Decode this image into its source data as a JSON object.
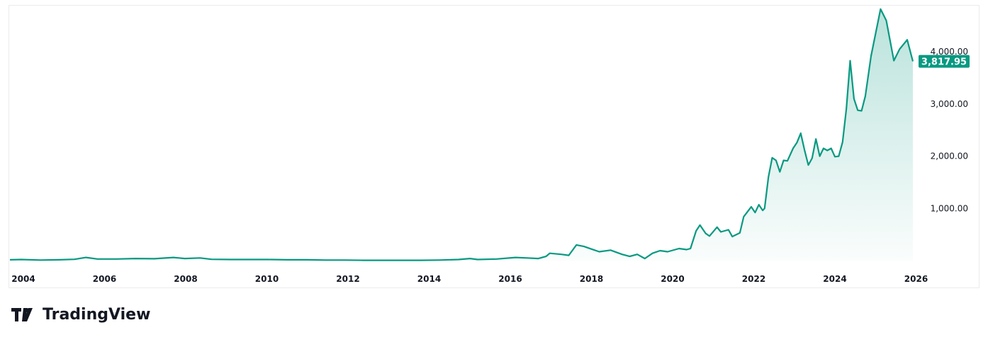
{
  "chart_data": {
    "type": "area",
    "xlabel": "",
    "ylabel": "",
    "xlim": [
      2003.67,
      2026.4
    ],
    "ylim": [
      0,
      4900
    ],
    "x_ticks": [
      "2004",
      "2006",
      "2008",
      "2010",
      "2012",
      "2014",
      "2016",
      "2018",
      "2020",
      "2022",
      "2024",
      "2026"
    ],
    "y_ticks": [
      1000,
      2000,
      3000,
      4000
    ],
    "y_tick_labels": [
      "1,000.00",
      "2,000.00",
      "3,000.00",
      "4,000.00"
    ],
    "last_price_label": "3,817.95",
    "line_color": "#089981",
    "grid": false,
    "points": [
      [
        2003.7,
        15
      ],
      [
        2004,
        20
      ],
      [
        2004.5,
        10
      ],
      [
        2005,
        15
      ],
      [
        2005.4,
        25
      ],
      [
        2005.7,
        60
      ],
      [
        2006,
        30
      ],
      [
        2006.5,
        30
      ],
      [
        2007,
        40
      ],
      [
        2007.5,
        35
      ],
      [
        2008,
        60
      ],
      [
        2008.3,
        40
      ],
      [
        2008.7,
        50
      ],
      [
        2009,
        25
      ],
      [
        2009.5,
        20
      ],
      [
        2010,
        20
      ],
      [
        2010.5,
        20
      ],
      [
        2011,
        15
      ],
      [
        2011.5,
        15
      ],
      [
        2012,
        10
      ],
      [
        2012.5,
        10
      ],
      [
        2013,
        5
      ],
      [
        2013.5,
        5
      ],
      [
        2014,
        5
      ],
      [
        2014.5,
        5
      ],
      [
        2015,
        10
      ],
      [
        2015.5,
        20
      ],
      [
        2015.8,
        40
      ],
      [
        2016,
        20
      ],
      [
        2016.5,
        30
      ],
      [
        2017,
        60
      ],
      [
        2017.3,
        50
      ],
      [
        2017.6,
        40
      ],
      [
        2017.8,
        80
      ],
      [
        2017.9,
        140
      ],
      [
        2018.2,
        120
      ],
      [
        2018.4,
        100
      ],
      [
        2018.6,
        300
      ],
      [
        2018.8,
        270
      ],
      [
        2019,
        220
      ],
      [
        2019.2,
        170
      ],
      [
        2019.5,
        200
      ],
      [
        2019.8,
        120
      ],
      [
        2020,
        80
      ],
      [
        2020.2,
        120
      ],
      [
        2020.4,
        40
      ],
      [
        2020.6,
        140
      ],
      [
        2020.8,
        190
      ],
      [
        2021,
        170
      ],
      [
        2021.3,
        230
      ],
      [
        2021.5,
        210
      ],
      [
        2021.6,
        230
      ],
      [
        2021.75,
        570
      ],
      [
        2021.85,
        680
      ],
      [
        2022,
        520
      ],
      [
        2022.1,
        470
      ],
      [
        2022.3,
        640
      ],
      [
        2022.4,
        550
      ],
      [
        2022.6,
        590
      ],
      [
        2022.7,
        460
      ],
      [
        2022.9,
        530
      ],
      [
        2023.0,
        840
      ],
      [
        2023.2,
        1030
      ],
      [
        2023.3,
        920
      ],
      [
        2023.4,
        1070
      ],
      [
        2023.5,
        960
      ],
      [
        2023.55,
        1000
      ],
      [
        2023.65,
        1600
      ],
      [
        2023.75,
        1970
      ],
      [
        2023.85,
        1920
      ],
      [
        2023.95,
        1700
      ],
      [
        2024.05,
        1920
      ],
      [
        2024.15,
        1910
      ],
      [
        2024.3,
        2150
      ],
      [
        2024.4,
        2260
      ],
      [
        2024.5,
        2440
      ],
      [
        2024.6,
        2120
      ],
      [
        2024.7,
        1830
      ],
      [
        2024.8,
        1960
      ],
      [
        2024.9,
        2330
      ],
      [
        2025.0,
        2000
      ],
      [
        2025.1,
        2150
      ],
      [
        2025.2,
        2110
      ],
      [
        2025.3,
        2150
      ],
      [
        2025.4,
        1990
      ],
      [
        2025.5,
        2000
      ],
      [
        2025.6,
        2270
      ],
      [
        2025.7,
        2900
      ],
      [
        2025.8,
        3830
      ],
      [
        2025.9,
        3100
      ],
      [
        2026.0,
        2880
      ],
      [
        2026.1,
        2870
      ],
      [
        2026.2,
        3150
      ],
      [
        2026.35,
        3920
      ],
      [
        2026.6,
        4820
      ],
      [
        2026.75,
        4600
      ],
      [
        2026.95,
        3830
      ],
      [
        2027.1,
        4050
      ],
      [
        2027.3,
        4230
      ],
      [
        2027.45,
        3818
      ]
    ]
  },
  "branding": {
    "logo_text": "TradingView"
  }
}
